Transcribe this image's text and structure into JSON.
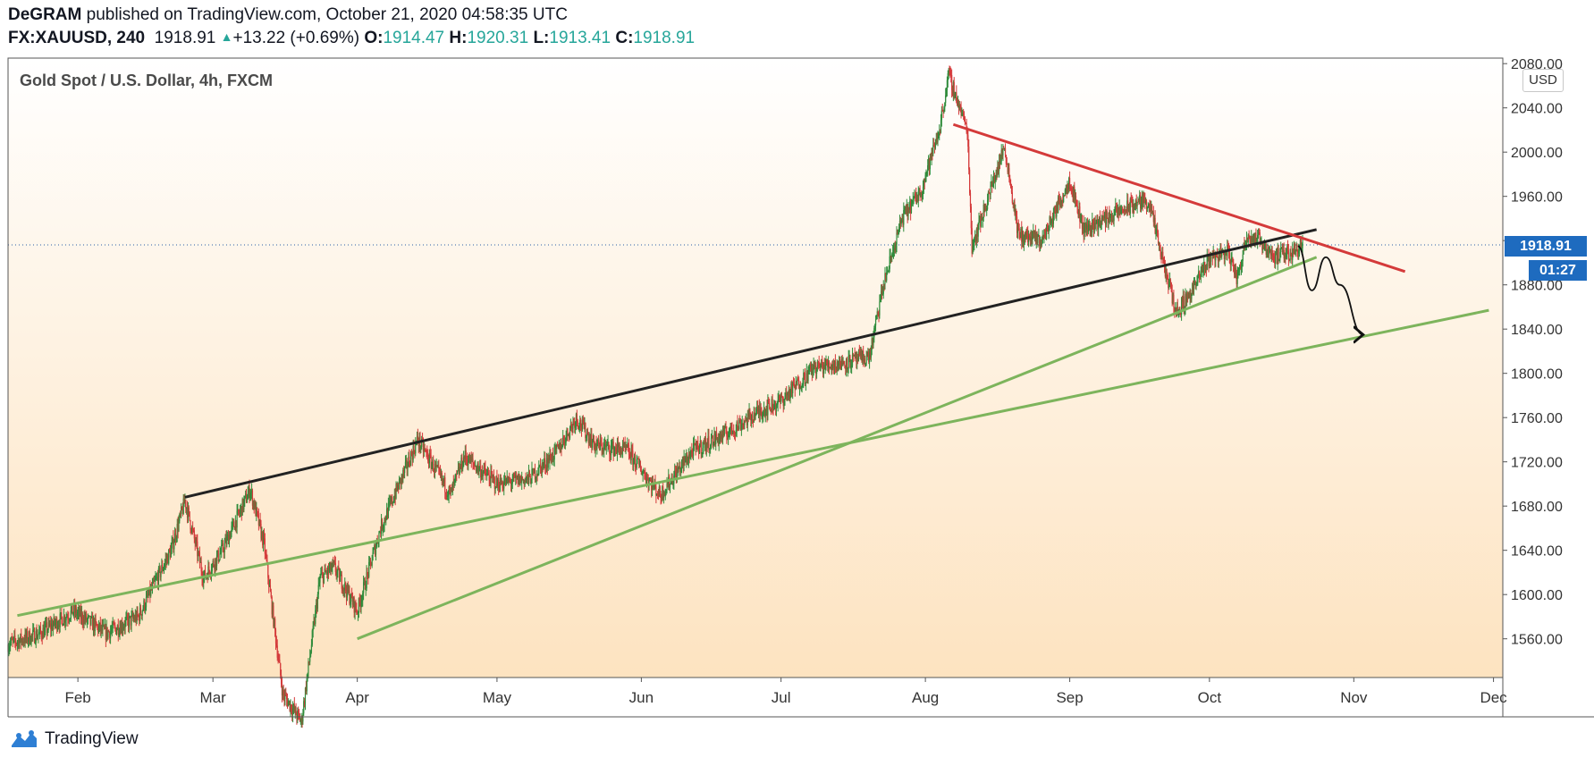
{
  "header": {
    "author": "DeGRAM",
    "published": " published on TradingView.com, October 21, 2020 04:58:35 UTC",
    "symbol": "FX:XAUUSD, 240",
    "last": "1918.91",
    "change": "+13.22 (+0.69%)",
    "o_label": "O:",
    "o_value": "1914.47",
    "h_label": "H:",
    "h_value": "1920.31",
    "l_label": "L:",
    "l_value": "1913.41",
    "c_label": "C:",
    "c_value": "1918.91"
  },
  "legend": "Gold Spot / U.S. Dollar, 4h, FXCM",
  "currency": "USD",
  "price_tag": "1918.91",
  "timer": "01:27",
  "footer": {
    "brand": "TradingView"
  },
  "colors": {
    "up": "#26a69a",
    "candle_up": "#2e8b3a",
    "candle_down": "#d43a3a",
    "resistance": "#d43a3a",
    "support": "#7db45c",
    "channel": "#222222",
    "accent": "#1e6bbf"
  },
  "chart_data": {
    "type": "candlestick",
    "title": "Gold Spot / U.S. Dollar, 4h, FXCM",
    "xlabel": "",
    "ylabel": "",
    "ylim": [
      1525,
      2085
    ],
    "x_range": [
      "2020-01-17",
      "2020-12-03"
    ],
    "y_ticks": [
      "1560.00",
      "1600.00",
      "1640.00",
      "1680.00",
      "1720.00",
      "1760.00",
      "1800.00",
      "1840.00",
      "1880.00",
      "1920.00",
      "1960.00",
      "2000.00",
      "2040.00",
      "2080.00"
    ],
    "x_ticks": [
      {
        "date": "2020-02-01",
        "label": "Feb"
      },
      {
        "date": "2020-03-01",
        "label": "Mar"
      },
      {
        "date": "2020-04-01",
        "label": "Apr"
      },
      {
        "date": "2020-05-01",
        "label": "May"
      },
      {
        "date": "2020-06-01",
        "label": "Jun"
      },
      {
        "date": "2020-07-01",
        "label": "Jul"
      },
      {
        "date": "2020-08-01",
        "label": "Aug"
      },
      {
        "date": "2020-09-01",
        "label": "Sep"
      },
      {
        "date": "2020-10-01",
        "label": "Oct"
      },
      {
        "date": "2020-11-01",
        "label": "Nov"
      },
      {
        "date": "2020-12-01",
        "label": "Dec"
      }
    ],
    "price_path": [
      [
        "2020-01-17",
        1555
      ],
      [
        "2020-01-24",
        1565
      ],
      [
        "2020-01-31",
        1585
      ],
      [
        "2020-02-07",
        1565
      ],
      [
        "2020-02-14",
        1580
      ],
      [
        "2020-02-21",
        1640
      ],
      [
        "2020-02-24",
        1685
      ],
      [
        "2020-02-28",
        1615
      ],
      [
        "2020-03-03",
        1640
      ],
      [
        "2020-03-09",
        1695
      ],
      [
        "2020-03-12",
        1645
      ],
      [
        "2020-03-16",
        1510
      ],
      [
        "2020-03-20",
        1485
      ],
      [
        "2020-03-24",
        1615
      ],
      [
        "2020-03-27",
        1625
      ],
      [
        "2020-04-01",
        1585
      ],
      [
        "2020-04-06",
        1660
      ],
      [
        "2020-04-14",
        1740
      ],
      [
        "2020-04-21",
        1690
      ],
      [
        "2020-04-24",
        1725
      ],
      [
        "2020-05-01",
        1700
      ],
      [
        "2020-05-08",
        1705
      ],
      [
        "2020-05-14",
        1730
      ],
      [
        "2020-05-18",
        1760
      ],
      [
        "2020-05-22",
        1735
      ],
      [
        "2020-05-29",
        1730
      ],
      [
        "2020-06-05",
        1690
      ],
      [
        "2020-06-12",
        1730
      ],
      [
        "2020-06-19",
        1745
      ],
      [
        "2020-06-26",
        1765
      ],
      [
        "2020-07-01",
        1775
      ],
      [
        "2020-07-08",
        1805
      ],
      [
        "2020-07-15",
        1810
      ],
      [
        "2020-07-20",
        1815
      ],
      [
        "2020-07-23",
        1880
      ],
      [
        "2020-07-27",
        1940
      ],
      [
        "2020-07-31",
        1965
      ],
      [
        "2020-08-04",
        2020
      ],
      [
        "2020-08-06",
        2070
      ],
      [
        "2020-08-10",
        2020
      ],
      [
        "2020-08-11",
        1915
      ],
      [
        "2020-08-13",
        1940
      ],
      [
        "2020-08-18",
        2005
      ],
      [
        "2020-08-21",
        1925
      ],
      [
        "2020-08-26",
        1920
      ],
      [
        "2020-09-01",
        1975
      ],
      [
        "2020-09-04",
        1930
      ],
      [
        "2020-09-11",
        1945
      ],
      [
        "2020-09-16",
        1955
      ],
      [
        "2020-09-18",
        1955
      ],
      [
        "2020-09-21",
        1900
      ],
      [
        "2020-09-24",
        1855
      ],
      [
        "2020-09-28",
        1880
      ],
      [
        "2020-10-01",
        1905
      ],
      [
        "2020-10-05",
        1910
      ],
      [
        "2020-10-07",
        1885
      ],
      [
        "2020-10-09",
        1925
      ],
      [
        "2020-10-12",
        1920
      ],
      [
        "2020-10-15",
        1905
      ],
      [
        "2020-10-19",
        1910
      ],
      [
        "2020-10-21",
        1919
      ]
    ],
    "trendlines": [
      {
        "name": "channel-top",
        "color": "#222222",
        "from": [
          "2020-02-24",
          1688
        ],
        "to": [
          "2020-10-24",
          1930
        ]
      },
      {
        "name": "resistance",
        "color": "#d43a3a",
        "from": [
          "2020-08-07",
          2025
        ],
        "to": [
          "2020-11-12",
          1892
        ]
      },
      {
        "name": "support-long",
        "color": "#7db45c",
        "from": [
          "2020-01-19",
          1581
        ],
        "to": [
          "2020-11-30",
          1857
        ]
      },
      {
        "name": "support-steep",
        "color": "#7db45c",
        "from": [
          "2020-04-01",
          1560
        ],
        "to": [
          "2020-10-24",
          1905
        ]
      }
    ],
    "projection": [
      [
        "2020-10-20",
        1915
      ],
      [
        "2020-10-23",
        1875
      ],
      [
        "2020-10-26",
        1905
      ],
      [
        "2020-10-29",
        1880
      ],
      [
        "2020-11-03",
        1835
      ]
    ],
    "last_price": 1918.91
  }
}
